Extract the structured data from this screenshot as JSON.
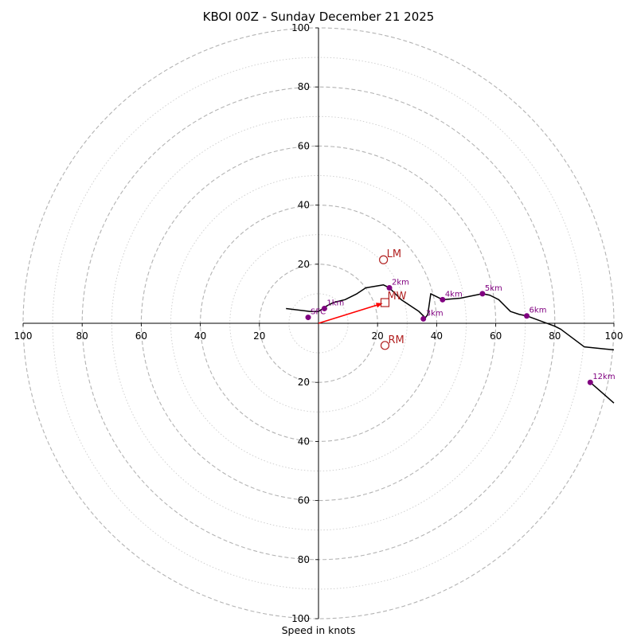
{
  "chart_data": {
    "type": "scatter",
    "subtype": "hodograph",
    "title": "KBOI 00Z - Sunday December 21 2025",
    "xlabel": "Speed in knots",
    "ylabel": "",
    "xlim": [
      -100,
      100
    ],
    "ylim": [
      -100,
      100
    ],
    "rings": [
      10,
      20,
      30,
      40,
      50,
      60,
      70,
      80,
      90,
      100
    ],
    "x_tick_labels": [
      "100",
      "80",
      "60",
      "40",
      "20",
      "20",
      "40",
      "60",
      "80",
      "100"
    ],
    "x_tick_values": [
      -100,
      -80,
      -60,
      -40,
      -20,
      20,
      40,
      60,
      80,
      100
    ],
    "y_tick_labels": [
      "100",
      "80",
      "60",
      "40",
      "20",
      "20",
      "40",
      "60",
      "80",
      "100"
    ],
    "y_tick_values": [
      100,
      80,
      60,
      40,
      20,
      -20,
      -40,
      -60,
      -80,
      -100
    ],
    "trace": [
      [
        -11,
        5
      ],
      [
        -3,
        4
      ],
      [
        0,
        4
      ],
      [
        3,
        6
      ],
      [
        5,
        7
      ],
      [
        9,
        8
      ],
      [
        13,
        10
      ],
      [
        16,
        12
      ],
      [
        22,
        13
      ],
      [
        24,
        12
      ],
      [
        26,
        10
      ],
      [
        28,
        8
      ],
      [
        31,
        6
      ],
      [
        34,
        4
      ],
      [
        36,
        2
      ],
      [
        35.5,
        1
      ],
      [
        37,
        3
      ],
      [
        38,
        10
      ],
      [
        42,
        8
      ],
      [
        48,
        8.5
      ],
      [
        55.5,
        10
      ],
      [
        58,
        9.5
      ],
      [
        61,
        8
      ],
      [
        63,
        6
      ],
      [
        65,
        4
      ],
      [
        68,
        3
      ],
      [
        70.5,
        2.5
      ],
      [
        80,
        -1
      ],
      [
        82,
        -2
      ],
      [
        90,
        -8
      ],
      [
        100,
        -9
      ]
    ],
    "trace_far": [
      [
        92,
        -20
      ],
      [
        100,
        -27
      ]
    ],
    "height_markers": [
      {
        "label": "SFC",
        "x": -3.5,
        "y": 2
      },
      {
        "label": "1km",
        "x": 2,
        "y": 5
      },
      {
        "label": "2km",
        "x": 24,
        "y": 12
      },
      {
        "label": "3km",
        "x": 35.5,
        "y": 1.5
      },
      {
        "label": "4km",
        "x": 42,
        "y": 8
      },
      {
        "label": "5km",
        "x": 55.5,
        "y": 10
      },
      {
        "label": "6km",
        "x": 70.5,
        "y": 2.5
      },
      {
        "label": "12km",
        "x": 92,
        "y": -20
      }
    ],
    "storm_motion": {
      "LM": {
        "label": "LM",
        "x": 22,
        "y": 21.5
      },
      "RM": {
        "label": "RM",
        "x": 22.5,
        "y": -7.5
      },
      "MW": {
        "label": "MW",
        "x": 22.5,
        "y": 7
      }
    },
    "colors": {
      "trace": "#000000",
      "markers": "#800080",
      "storm": "#b22222",
      "arrow": "#ff0000",
      "grid": "#b3b3b3"
    }
  }
}
